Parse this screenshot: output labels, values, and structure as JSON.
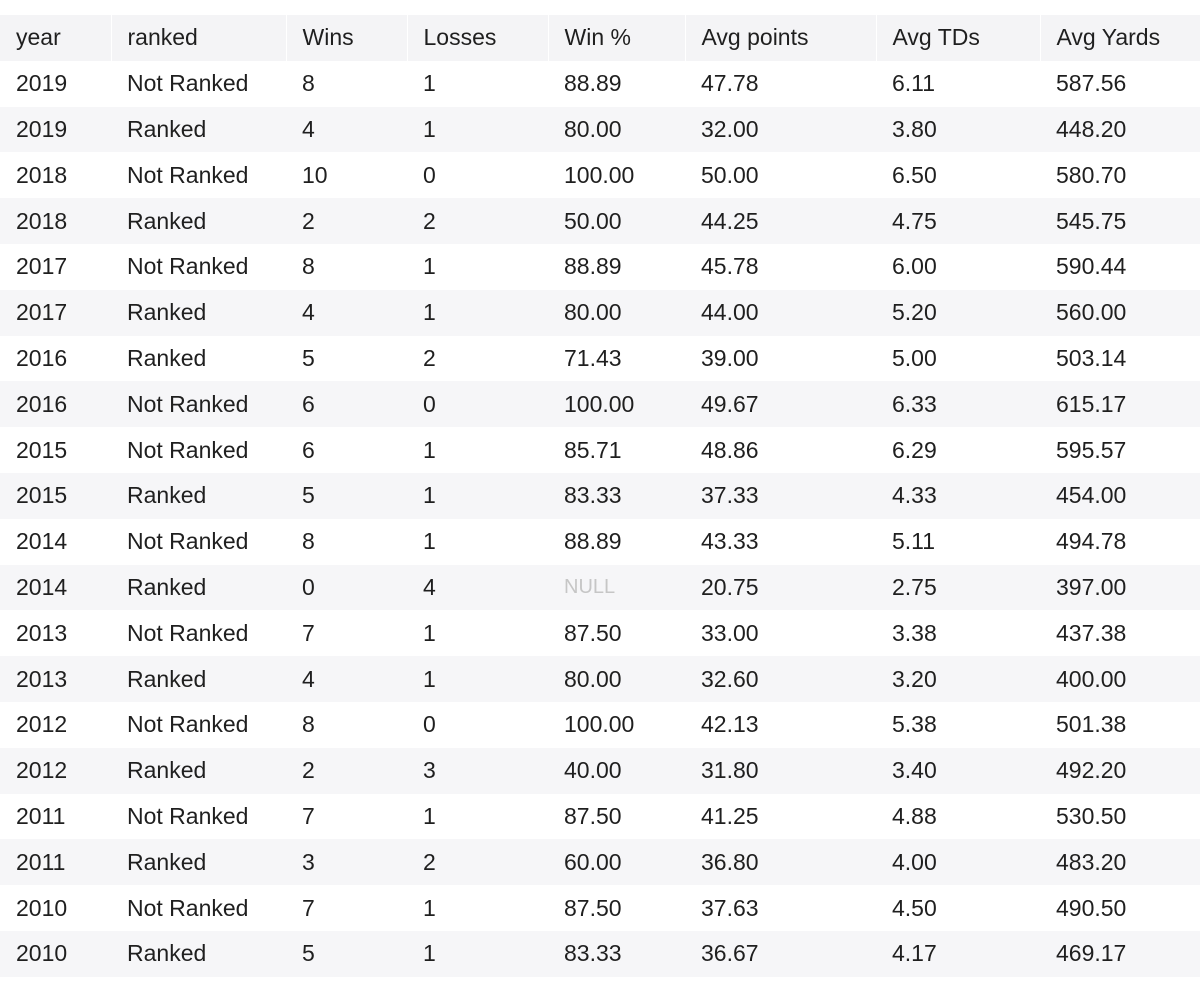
{
  "table": {
    "columns": [
      "year",
      "ranked",
      "Wins",
      "Losses",
      "Win %",
      "Avg points",
      "Avg TDs",
      "Avg Yards"
    ],
    "rows": [
      [
        "2019",
        "Not Ranked",
        "8",
        "1",
        "88.89",
        "47.78",
        "6.11",
        "587.56"
      ],
      [
        "2019",
        "Ranked",
        "4",
        "1",
        "80.00",
        "32.00",
        "3.80",
        "448.20"
      ],
      [
        "2018",
        "Not Ranked",
        "10",
        "0",
        "100.00",
        "50.00",
        "6.50",
        "580.70"
      ],
      [
        "2018",
        "Ranked",
        "2",
        "2",
        "50.00",
        "44.25",
        "4.75",
        "545.75"
      ],
      [
        "2017",
        "Not Ranked",
        "8",
        "1",
        "88.89",
        "45.78",
        "6.00",
        "590.44"
      ],
      [
        "2017",
        "Ranked",
        "4",
        "1",
        "80.00",
        "44.00",
        "5.20",
        "560.00"
      ],
      [
        "2016",
        "Ranked",
        "5",
        "2",
        "71.43",
        "39.00",
        "5.00",
        "503.14"
      ],
      [
        "2016",
        "Not Ranked",
        "6",
        "0",
        "100.00",
        "49.67",
        "6.33",
        "615.17"
      ],
      [
        "2015",
        "Not Ranked",
        "6",
        "1",
        "85.71",
        "48.86",
        "6.29",
        "595.57"
      ],
      [
        "2015",
        "Ranked",
        "5",
        "1",
        "83.33",
        "37.33",
        "4.33",
        "454.00"
      ],
      [
        "2014",
        "Not Ranked",
        "8",
        "1",
        "88.89",
        "43.33",
        "5.11",
        "494.78"
      ],
      [
        "2014",
        "Ranked",
        "0",
        "4",
        "NULL",
        "20.75",
        "2.75",
        "397.00"
      ],
      [
        "2013",
        "Not Ranked",
        "7",
        "1",
        "87.50",
        "33.00",
        "3.38",
        "437.38"
      ],
      [
        "2013",
        "Ranked",
        "4",
        "1",
        "80.00",
        "32.60",
        "3.20",
        "400.00"
      ],
      [
        "2012",
        "Not Ranked",
        "8",
        "0",
        "100.00",
        "42.13",
        "5.38",
        "501.38"
      ],
      [
        "2012",
        "Ranked",
        "2",
        "3",
        "40.00",
        "31.80",
        "3.40",
        "492.20"
      ],
      [
        "2011",
        "Not Ranked",
        "7",
        "1",
        "87.50",
        "41.25",
        "4.88",
        "530.50"
      ],
      [
        "2011",
        "Ranked",
        "3",
        "2",
        "60.00",
        "36.80",
        "4.00",
        "483.20"
      ],
      [
        "2010",
        "Not Ranked",
        "7",
        "1",
        "87.50",
        "37.63",
        "4.50",
        "490.50"
      ],
      [
        "2010",
        "Ranked",
        "5",
        "1",
        "83.33",
        "36.67",
        "4.17",
        "469.17"
      ]
    ],
    "null_color": "#c6c6c6",
    "header_background": "#f4f4f6",
    "stripe_background": "#f6f6f8"
  }
}
